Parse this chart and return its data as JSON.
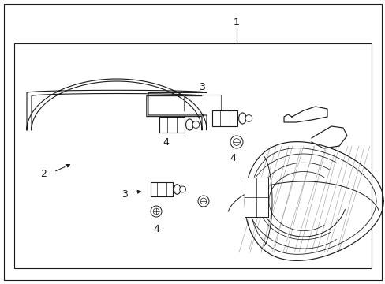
{
  "bg_color": "#ffffff",
  "line_color": "#1a1a1a",
  "gray_color": "#666666",
  "light_gray": "#999999",
  "figsize": [
    4.89,
    3.6
  ],
  "dpi": 100
}
